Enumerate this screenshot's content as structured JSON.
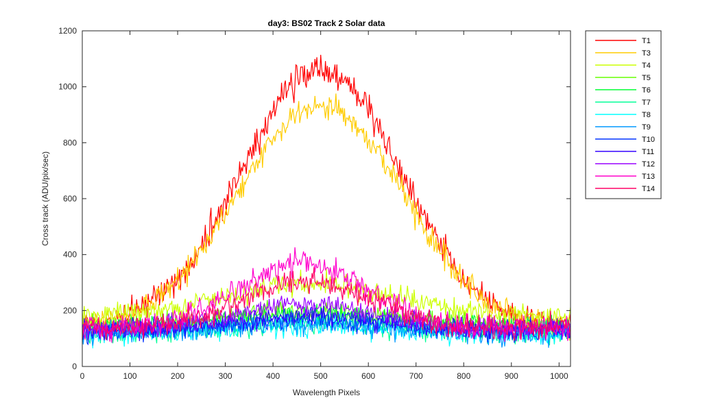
{
  "chart_data": {
    "type": "line",
    "title": "day3: BS02  Track 2 Solar data",
    "xlabel": "Wavelength Pixels",
    "ylabel": "Cross track (ADU/pix/sec)",
    "xlim": [
      0,
      1024
    ],
    "ylim": [
      0,
      1200
    ],
    "xticks": [
      0,
      100,
      200,
      300,
      400,
      500,
      600,
      700,
      800,
      900,
      1000
    ],
    "yticks": [
      0,
      200,
      400,
      600,
      800,
      1000,
      1200
    ],
    "legend_position": "outside-top-right",
    "grid": false,
    "series": [
      {
        "name": "T1",
        "color": "#ff0000",
        "base": 130,
        "peak": 1060,
        "center": 500,
        "width": 300,
        "noise": 45
      },
      {
        "name": "T3",
        "color": "#ffcc00",
        "base": 130,
        "peak": 935,
        "center": 500,
        "width": 310,
        "noise": 40
      },
      {
        "name": "T4",
        "color": "#ccff00",
        "base": 175,
        "peak": 295,
        "center": 480,
        "width": 330,
        "noise": 35
      },
      {
        "name": "T5",
        "color": "#66ff00",
        "base": 145,
        "peak": 200,
        "center": 480,
        "width": 300,
        "noise": 30
      },
      {
        "name": "T6",
        "color": "#00ff33",
        "base": 140,
        "peak": 185,
        "center": 480,
        "width": 300,
        "noise": 30
      },
      {
        "name": "T7",
        "color": "#00ff99",
        "base": 120,
        "peak": 160,
        "center": 480,
        "width": 300,
        "noise": 30
      },
      {
        "name": "T8",
        "color": "#00ffff",
        "base": 115,
        "peak": 150,
        "center": 480,
        "width": 300,
        "noise": 32
      },
      {
        "name": "T9",
        "color": "#0099ff",
        "base": 115,
        "peak": 150,
        "center": 480,
        "width": 300,
        "noise": 30
      },
      {
        "name": "T10",
        "color": "#0033ff",
        "base": 125,
        "peak": 165,
        "center": 480,
        "width": 300,
        "noise": 30
      },
      {
        "name": "T11",
        "color": "#3300ff",
        "base": 130,
        "peak": 180,
        "center": 480,
        "width": 280,
        "noise": 30
      },
      {
        "name": "T12",
        "color": "#9900ff",
        "base": 135,
        "peak": 225,
        "center": 470,
        "width": 250,
        "noise": 30
      },
      {
        "name": "T13",
        "color": "#ff00cc",
        "base": 135,
        "peak": 370,
        "center": 460,
        "width": 240,
        "noise": 35
      },
      {
        "name": "T14",
        "color": "#ff0066",
        "base": 135,
        "peak": 305,
        "center": 470,
        "width": 240,
        "noise": 35
      }
    ]
  }
}
